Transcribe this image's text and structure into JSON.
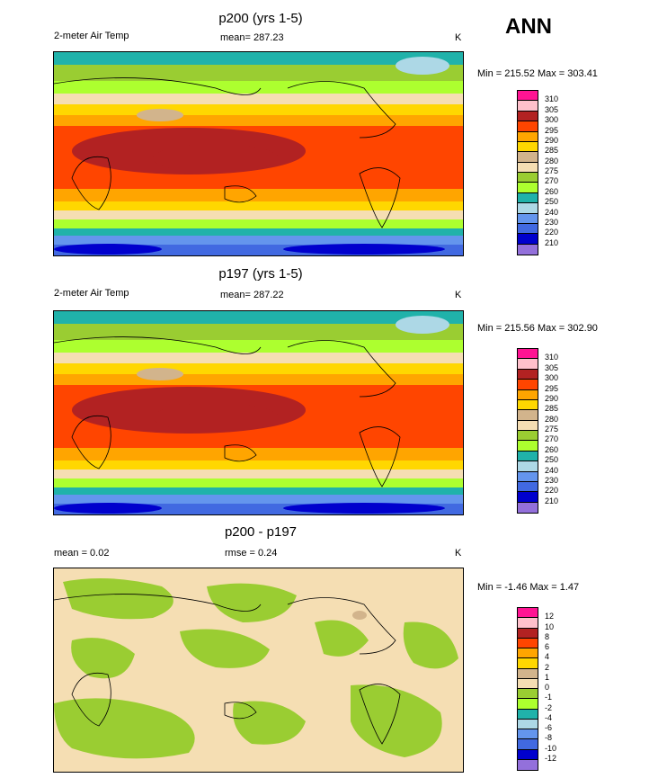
{
  "season": "ANN",
  "panels": [
    {
      "title": "p200 (yrs 1-5)",
      "left_label": "2-meter Air Temp",
      "center_label": "mean= 287.23",
      "units": "K",
      "minmax": "Min = 215.52 Max = 303.41",
      "levels": [
        "310",
        "305",
        "300",
        "295",
        "290",
        "285",
        "280",
        "275",
        "270",
        "260",
        "250",
        "240",
        "230",
        "220",
        "210"
      ],
      "colors": [
        "#ff1493",
        "#ffc0cb",
        "#b22222",
        "#ff4500",
        "#ffa500",
        "#ffd700",
        "#d2b48c",
        "#f5deb3",
        "#9acd32",
        "#adff2f",
        "#20b2aa",
        "#add8e6",
        "#6495ed",
        "#4169e1",
        "#0000cd",
        "#9370db"
      ]
    },
    {
      "title": "p197 (yrs 1-5)",
      "left_label": "2-meter Air Temp",
      "center_label": "mean= 287.22",
      "units": "K",
      "minmax": "Min = 215.56 Max = 302.90",
      "levels": [
        "310",
        "305",
        "300",
        "295",
        "290",
        "285",
        "280",
        "275",
        "270",
        "260",
        "250",
        "240",
        "230",
        "220",
        "210"
      ],
      "colors": [
        "#ff1493",
        "#ffc0cb",
        "#b22222",
        "#ff4500",
        "#ffa500",
        "#ffd700",
        "#d2b48c",
        "#f5deb3",
        "#9acd32",
        "#adff2f",
        "#20b2aa",
        "#add8e6",
        "#6495ed",
        "#4169e1",
        "#0000cd",
        "#9370db"
      ]
    },
    {
      "title": "p200 - p197",
      "left_label": "mean =  0.02",
      "center_label": "rmse =  0.24",
      "units": "K",
      "minmax": "Min = -1.46 Max =  1.47",
      "levels": [
        "12",
        "10",
        "8",
        "6",
        "4",
        "2",
        "1",
        "0",
        "-1",
        "-2",
        "-4",
        "-6",
        "-8",
        "-10",
        "-12"
      ],
      "colors": [
        "#ff1493",
        "#ffc0cb",
        "#b22222",
        "#ff4500",
        "#ffa500",
        "#ffd700",
        "#d2b48c",
        "#f5deb3",
        "#9acd32",
        "#adff2f",
        "#20b2aa",
        "#add8e6",
        "#6495ed",
        "#4169e1",
        "#0000cd",
        "#9370db"
      ]
    }
  ],
  "chart_data": [
    {
      "type": "heatmap",
      "title": "p200 (yrs 1-5)",
      "subtitle": "2-meter Air Temp",
      "mean": 287.23,
      "min": 215.52,
      "max": 303.41,
      "units": "K",
      "contour_levels": [
        210,
        220,
        230,
        240,
        250,
        260,
        270,
        275,
        280,
        285,
        290,
        295,
        300,
        305,
        310
      ]
    },
    {
      "type": "heatmap",
      "title": "p197 (yrs 1-5)",
      "subtitle": "2-meter Air Temp",
      "mean": 287.22,
      "min": 215.56,
      "max": 302.9,
      "units": "K",
      "contour_levels": [
        210,
        220,
        230,
        240,
        250,
        260,
        270,
        275,
        280,
        285,
        290,
        295,
        300,
        305,
        310
      ]
    },
    {
      "type": "heatmap",
      "title": "p200 - p197",
      "mean": 0.02,
      "rmse": 0.24,
      "min": -1.46,
      "max": 1.47,
      "units": "K",
      "contour_levels": [
        -12,
        -10,
        -8,
        -6,
        -4,
        -2,
        -1,
        0,
        1,
        2,
        4,
        6,
        8,
        10,
        12
      ]
    }
  ]
}
